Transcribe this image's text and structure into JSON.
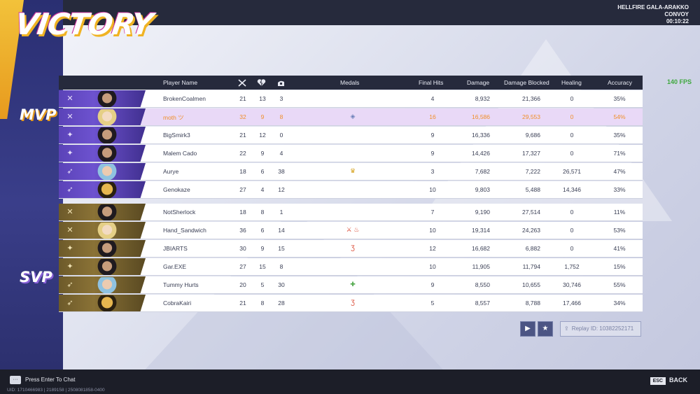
{
  "title": "VICTORY",
  "match_info": {
    "map": "HELLFIRE GALA-ARAKKO",
    "mode": "CONVOY",
    "time": "00:10:22"
  },
  "fps": "140 FPS",
  "badges": {
    "mvp": "MVP",
    "svp": "SVP"
  },
  "columns": {
    "player_name": "Player Name",
    "kills_icon": "crossed-swords-icon",
    "deaths_icon": "broken-heart-icon",
    "assists_icon": "assist-hand-icon",
    "medals": "Medals",
    "final_hits": "Final Hits",
    "damage": "Damage",
    "damage_blocked": "Damage Blocked",
    "healing": "Healing",
    "accuracy": "Accuracy"
  },
  "team1": [
    {
      "name": "BrokenCoalmen",
      "k": "21",
      "d": "13",
      "a": "3",
      "medal": "",
      "final_hits": "4",
      "damage": "8,932",
      "blocked": "21,366",
      "healing": "0",
      "accuracy": "35%"
    },
    {
      "name": "moth ツ",
      "k": "32",
      "d": "9",
      "a": "8",
      "medal": "◈",
      "final_hits": "16",
      "damage": "16,586",
      "blocked": "29,553",
      "healing": "0",
      "accuracy": "54%"
    },
    {
      "name": "BigSmirk3",
      "k": "21",
      "d": "12",
      "a": "0",
      "medal": "",
      "final_hits": "9",
      "damage": "16,336",
      "blocked": "9,686",
      "healing": "0",
      "accuracy": "35%"
    },
    {
      "name": "Malem Cado",
      "k": "22",
      "d": "9",
      "a": "4",
      "medal": "",
      "final_hits": "9",
      "damage": "14,426",
      "blocked": "17,327",
      "healing": "0",
      "accuracy": "71%"
    },
    {
      "name": "Aurye",
      "k": "18",
      "d": "6",
      "a": "38",
      "medal": "♛",
      "final_hits": "3",
      "damage": "7,682",
      "blocked": "7,222",
      "healing": "26,571",
      "accuracy": "47%"
    },
    {
      "name": "Genokaze",
      "k": "27",
      "d": "4",
      "a": "12",
      "medal": "",
      "final_hits": "10",
      "damage": "9,803",
      "blocked": "5,488",
      "healing": "14,346",
      "accuracy": "33%"
    }
  ],
  "team2": [
    {
      "name": "NotSherlock",
      "k": "18",
      "d": "8",
      "a": "1",
      "medal": "",
      "final_hits": "7",
      "damage": "9,190",
      "blocked": "27,514",
      "healing": "0",
      "accuracy": "11%"
    },
    {
      "name": "Hand_Sandwich",
      "k": "36",
      "d": "6",
      "a": "14",
      "medal": "⚔ ♨",
      "final_hits": "10",
      "damage": "19,314",
      "blocked": "24,263",
      "healing": "0",
      "accuracy": "53%"
    },
    {
      "name": "JBIARTS",
      "k": "30",
      "d": "9",
      "a": "15",
      "medal": "Ʒ",
      "final_hits": "12",
      "damage": "16,682",
      "blocked": "6,882",
      "healing": "0",
      "accuracy": "41%"
    },
    {
      "name": "Gar.EXE",
      "k": "27",
      "d": "15",
      "a": "8",
      "medal": "",
      "final_hits": "10",
      "damage": "11,905",
      "blocked": "11,794",
      "healing": "1,752",
      "accuracy": "15%"
    },
    {
      "name": "Tummy Hurts",
      "k": "20",
      "d": "5",
      "a": "30",
      "medal": "✚",
      "final_hits": "9",
      "damage": "8,550",
      "blocked": "10,655",
      "healing": "30,746",
      "accuracy": "55%"
    },
    {
      "name": "CobraKairi",
      "k": "21",
      "d": "8",
      "a": "28",
      "medal": "Ʒ",
      "final_hits": "5",
      "damage": "8,557",
      "blocked": "8,788",
      "healing": "17,466",
      "accuracy": "34%"
    }
  ],
  "replay": {
    "label": "Replay ID: 10382252171",
    "play_icon": "play-icon",
    "favorite_icon": "star-icon",
    "share_icon": "share-icon"
  },
  "footer": {
    "chat_prompt": "Press Enter To Chat",
    "uid": "UID: 1710466983 | 2189158 | 2508081858-0400",
    "esc_key": "ESC",
    "back_label": "BACK"
  },
  "colors": {
    "team1": "#5b43b8",
    "team2": "#8a7236",
    "highlight_row": "#e9d9f7",
    "highlight_text": "#f08f2a",
    "header": "#262a3c"
  }
}
